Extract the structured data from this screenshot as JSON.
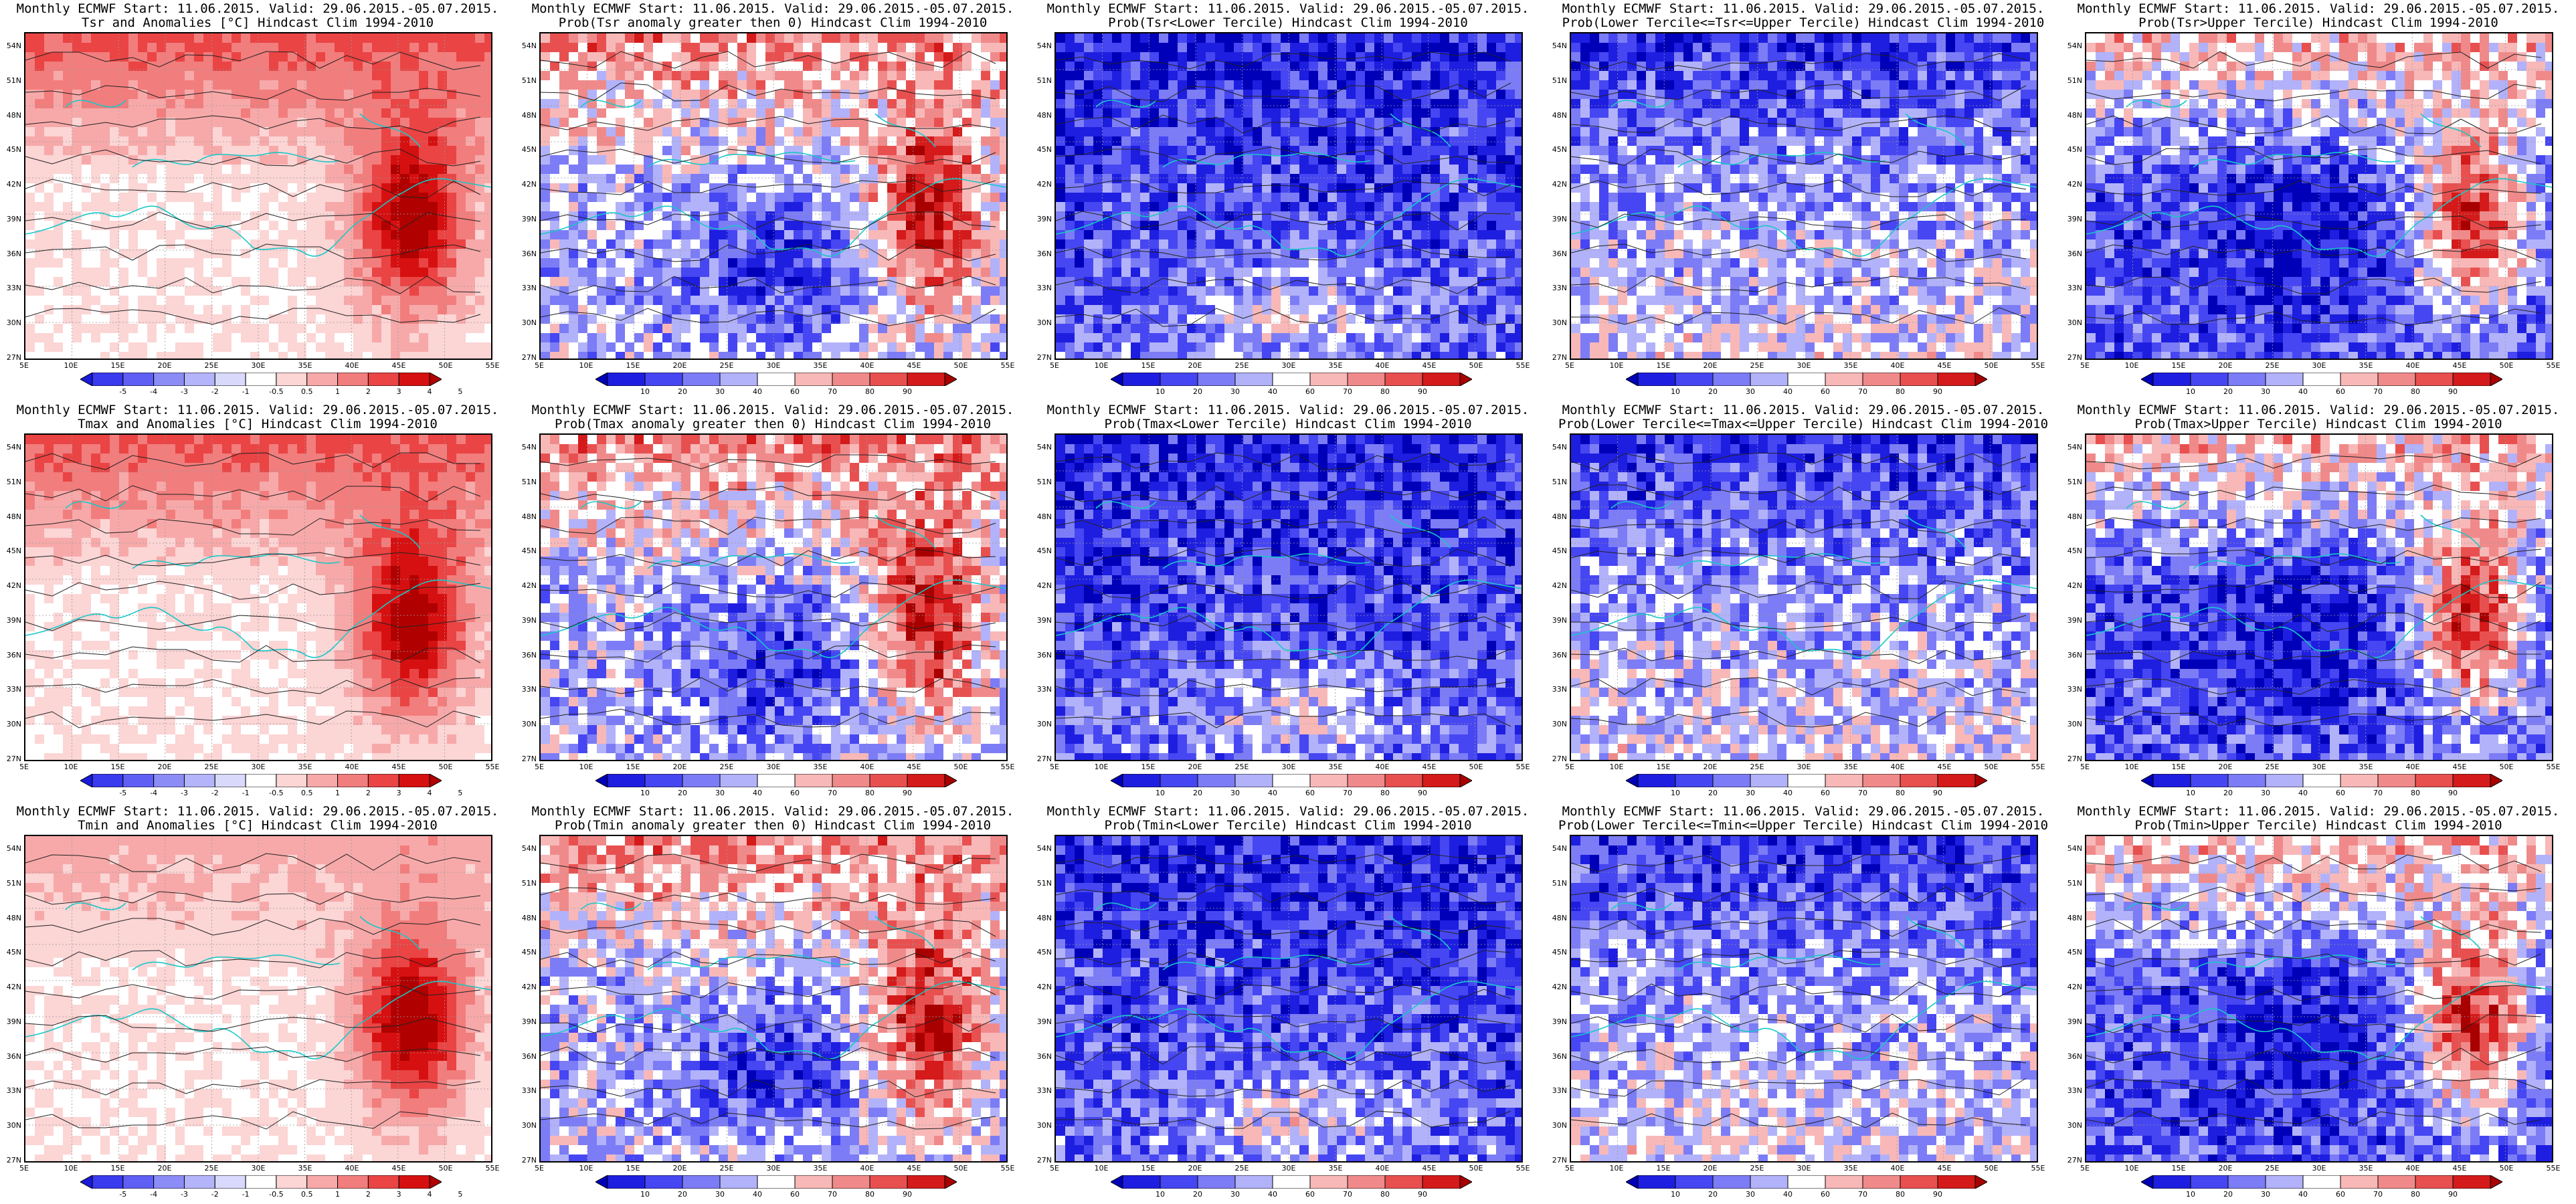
{
  "header_line": "Monthly ECMWF Start: 11.06.2015. Valid: 29.06.2015.-05.07.2015.",
  "lat_labels": [
    "54N",
    "51N",
    "48N",
    "45N",
    "42N",
    "39N",
    "36N",
    "33N",
    "30N",
    "27N"
  ],
  "lon_labels": [
    "5E",
    "10E",
    "15E",
    "20E",
    "25E",
    "30E",
    "35E",
    "40E",
    "45E",
    "50E",
    "55E"
  ],
  "anom_scale": [
    "-5",
    "-4",
    "-3",
    "-2",
    "-1",
    "-0.5",
    "0.5",
    "1",
    "2",
    "3",
    "4",
    "5"
  ],
  "prob_scale": [
    "10",
    "20",
    "30",
    "40",
    "60",
    "70",
    "80",
    "90"
  ],
  "anom_colors": [
    "#1a1ad8",
    "#3a3aee",
    "#5f5ff5",
    "#8c8cf7",
    "#b4b4fa",
    "#d9d9fc",
    "#ffffff",
    "#fcd5d5",
    "#f7a9a9",
    "#f27d7d",
    "#ea4444",
    "#d61010",
    "#b00000"
  ],
  "prob_colors": [
    "#0000b8",
    "#1e1ee0",
    "#4646f2",
    "#7c7cf6",
    "#b2b2fa",
    "#ffffff",
    "#f8b8b8",
    "#f08a8a",
    "#e85050",
    "#d41a1a",
    "#a80000"
  ],
  "rows": [
    {
      "row_id": "tsr",
      "panels": [
        {
          "kind": "anom",
          "title": "Tsr and Anomalies [°C] Hindcast Clim 1994-2010",
          "scheme": "warm"
        },
        {
          "kind": "prob",
          "title": "Prob(Tsr anomaly greater then 0) Hindcast Clim 1994-2010",
          "scheme": "mixed-warm"
        },
        {
          "kind": "prob",
          "title": "Prob(Tsr<Lower Tercile) Hindcast Clim 1994-2010",
          "scheme": "cold"
        },
        {
          "kind": "prob",
          "title": "Prob(Lower Tercile<=Tsr<=Upper Tercile) Hindcast Clim 1994-2010",
          "scheme": "cold-mixed"
        },
        {
          "kind": "prob",
          "title": "Prob(Tsr>Upper Tercile) Hindcast Clim 1994-2010",
          "scheme": "mixed"
        }
      ]
    },
    {
      "row_id": "tmax",
      "panels": [
        {
          "kind": "anom",
          "title": "Tmax and Anomalies [°C] Hindcast Clim 1994-2010",
          "scheme": "warm"
        },
        {
          "kind": "prob",
          "title": "Prob(Tmax anomaly greater then 0) Hindcast Clim 1994-2010",
          "scheme": "mixed-warm"
        },
        {
          "kind": "prob",
          "title": "Prob(Tmax<Lower Tercile) Hindcast Clim 1994-2010",
          "scheme": "cold"
        },
        {
          "kind": "prob",
          "title": "Prob(Lower Tercile<=Tmax<=Upper Tercile) Hindcast Clim 1994-2010",
          "scheme": "cold-mixed"
        },
        {
          "kind": "prob",
          "title": "Prob(Tmax>Upper Tercile) Hindcast Clim 1994-2010",
          "scheme": "mixed"
        }
      ]
    },
    {
      "row_id": "tmin",
      "panels": [
        {
          "kind": "anom",
          "title": "Tmin and Anomalies [°C] Hindcast Clim 1994-2010",
          "scheme": "warm-light"
        },
        {
          "kind": "prob",
          "title": "Prob(Tmin anomaly greater then 0) Hindcast Clim 1994-2010",
          "scheme": "mixed-warm"
        },
        {
          "kind": "prob",
          "title": "Prob(Tmin<Lower Tercile) Hindcast Clim 1994-2010",
          "scheme": "cold"
        },
        {
          "kind": "prob",
          "title": "Prob(Lower Tercile<=Tmin<=Upper Tercile) Hindcast Clim 1994-2010",
          "scheme": "cold-mixed"
        },
        {
          "kind": "prob",
          "title": "Prob(Tmin>Upper Tercile) Hindcast Clim 1994-2010",
          "scheme": "mixed"
        }
      ]
    }
  ]
}
